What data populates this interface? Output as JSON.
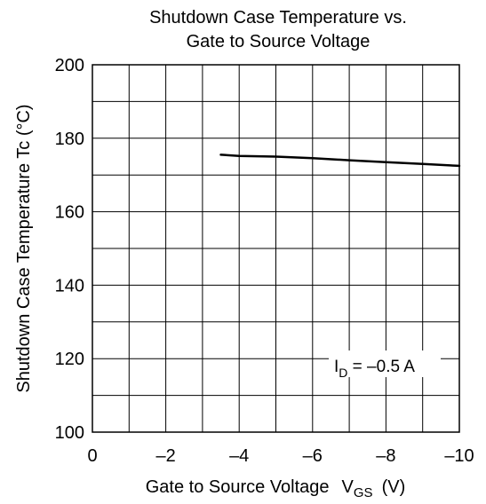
{
  "chart_data": {
    "type": "line",
    "title_line1": "Shutdown Case Temperature vs.",
    "title_line2": "Gate to Source Voltage",
    "ylabel": "Shutdown Case Temperature Tc  (°C)",
    "xlabel_text": "Gate to Source Voltage",
    "xlabel_symbol": "V",
    "xlabel_subscript": "GS",
    "xlabel_unit": "(V)",
    "annotation": {
      "prefix": "I",
      "subscript": "D",
      "text": " = –0.5 A"
    },
    "x_ticks": [
      0,
      -1,
      -2,
      -3,
      -4,
      -5,
      -6,
      -7,
      -8,
      -9,
      -10
    ],
    "x_tick_labels": [
      {
        "value": 0,
        "label": "0"
      },
      {
        "value": -2,
        "label": "–2"
      },
      {
        "value": -4,
        "label": "–4"
      },
      {
        "value": -6,
        "label": "–6"
      },
      {
        "value": -8,
        "label": "–8"
      },
      {
        "value": -10,
        "label": "–10"
      }
    ],
    "y_ticks": [
      100,
      110,
      120,
      130,
      140,
      150,
      160,
      170,
      180,
      190,
      200
    ],
    "y_tick_labels": [
      {
        "value": 200,
        "label": "200"
      },
      {
        "value": 180,
        "label": "180"
      },
      {
        "value": 160,
        "label": "160"
      },
      {
        "value": 140,
        "label": "140"
      },
      {
        "value": 120,
        "label": "120"
      },
      {
        "value": 100,
        "label": "100"
      }
    ],
    "xlim": [
      0,
      -10
    ],
    "ylim": [
      100,
      200
    ],
    "grid": true,
    "series": [
      {
        "x": [
          -3.5,
          -4,
          -5,
          -6,
          -7,
          -8,
          -9,
          -10
        ],
        "y": [
          175.5,
          175.2,
          175.0,
          174.6,
          174.0,
          173.5,
          173.0,
          172.5
        ]
      }
    ]
  }
}
